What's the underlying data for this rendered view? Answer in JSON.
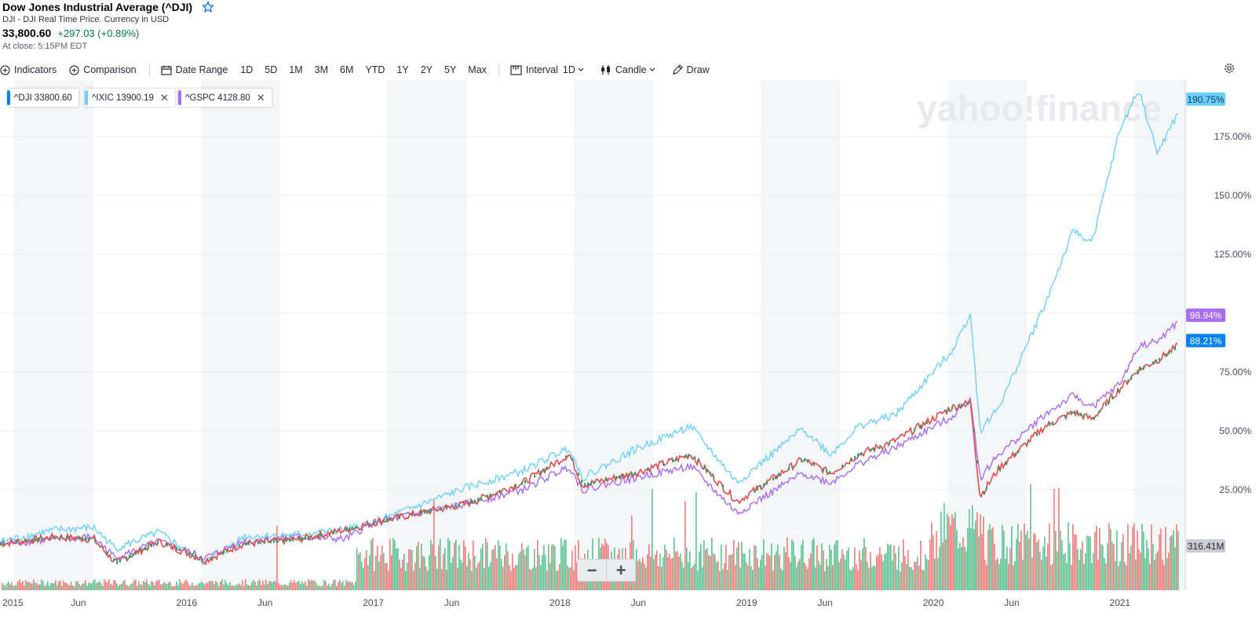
{
  "header": {
    "title": "Dow Jones Industrial Average (^DJI)",
    "subtitle": "DJI - DJI Real Time Price. Currency in USD",
    "price": "33,800.60",
    "change": "+297.03 (+0.89%)",
    "close_note": "At close: 5:15PM EDT",
    "watchlist_icon": "star-icon"
  },
  "toolbar": {
    "indicators": "Indicators",
    "comparison": "Comparison",
    "date_range": "Date Range",
    "ranges": [
      "1D",
      "5D",
      "1M",
      "3M",
      "6M",
      "YTD",
      "1Y",
      "2Y",
      "5Y",
      "Max"
    ],
    "interval_label": "Interval",
    "interval_value": "1D",
    "chart_type": "Candle",
    "draw": "Draw"
  },
  "chips": [
    {
      "label": "^DJI 33800.60",
      "color": "#0081f2",
      "closable": false
    },
    {
      "label": "^IXIC 13900.19",
      "color": "#6cd0ff",
      "closable": true
    },
    {
      "label": "^GSPC 4128.80",
      "color": "#a76bf5",
      "closable": true
    }
  ],
  "zoom": {
    "minus": "−",
    "plus": "+"
  },
  "watermark": "yahoo!finance",
  "colors": {
    "dji": "#0081f2",
    "ixic": "#6cd0ff",
    "gspc": "#a76bf5",
    "up": "#2ea06a",
    "down": "#e34a4a",
    "positive_change": "#067a46",
    "volume_badge": "#c9ccd0"
  },
  "chart_data": {
    "type": "line",
    "ylabel": "",
    "y_unit": "% change",
    "ylim": [
      -10,
      200
    ],
    "yticks": [
      "25.00%",
      "50.00%",
      "75.00%",
      "125.00%",
      "150.00%",
      "175.00%"
    ],
    "xtick_labels": [
      "2015",
      "Jun",
      "2016",
      "Jun",
      "2017",
      "Jun",
      "2018",
      "Jun",
      "2019",
      "Jun",
      "2020",
      "Jun",
      "2021"
    ],
    "x_range": [
      2015.0,
      2021.35
    ],
    "series": [
      {
        "name": "^IXIC",
        "last_label": "190.75%",
        "points": [
          [
            2015.0,
            3
          ],
          [
            2015.3,
            8
          ],
          [
            2015.5,
            9
          ],
          [
            2015.62,
            0
          ],
          [
            2015.85,
            7
          ],
          [
            2016.1,
            -6
          ],
          [
            2016.3,
            5
          ],
          [
            2016.6,
            6
          ],
          [
            2016.85,
            8
          ],
          [
            2017.0,
            11
          ],
          [
            2017.3,
            20
          ],
          [
            2017.5,
            26
          ],
          [
            2017.8,
            33
          ],
          [
            2018.05,
            43
          ],
          [
            2018.12,
            30
          ],
          [
            2018.4,
            42
          ],
          [
            2018.7,
            52
          ],
          [
            2018.95,
            28
          ],
          [
            2019.3,
            51
          ],
          [
            2019.45,
            40
          ],
          [
            2019.6,
            52
          ],
          [
            2019.8,
            57
          ],
          [
            2020.1,
            84
          ],
          [
            2020.2,
            100
          ],
          [
            2020.25,
            50
          ],
          [
            2020.35,
            60
          ],
          [
            2020.6,
            104
          ],
          [
            2020.75,
            135
          ],
          [
            2020.85,
            130
          ],
          [
            2021.0,
            178
          ],
          [
            2021.1,
            195
          ],
          [
            2021.2,
            168
          ],
          [
            2021.35,
            190.75
          ]
        ]
      },
      {
        "name": "^GSPC",
        "last_label": "98.94%",
        "points": [
          [
            2015.0,
            2
          ],
          [
            2015.3,
            4
          ],
          [
            2015.5,
            5
          ],
          [
            2015.62,
            -4
          ],
          [
            2015.85,
            3
          ],
          [
            2016.1,
            -4
          ],
          [
            2016.3,
            3
          ],
          [
            2016.6,
            5
          ],
          [
            2016.85,
            4
          ],
          [
            2017.0,
            11
          ],
          [
            2017.3,
            16
          ],
          [
            2017.5,
            19
          ],
          [
            2017.8,
            25
          ],
          [
            2018.05,
            35
          ],
          [
            2018.12,
            25
          ],
          [
            2018.4,
            30
          ],
          [
            2018.7,
            35
          ],
          [
            2018.95,
            15
          ],
          [
            2019.3,
            32
          ],
          [
            2019.45,
            28
          ],
          [
            2019.6,
            36
          ],
          [
            2019.8,
            43
          ],
          [
            2020.1,
            56
          ],
          [
            2020.2,
            64
          ],
          [
            2020.25,
            30
          ],
          [
            2020.35,
            40
          ],
          [
            2020.6,
            57
          ],
          [
            2020.75,
            65
          ],
          [
            2020.85,
            60
          ],
          [
            2021.0,
            70
          ],
          [
            2021.1,
            86
          ],
          [
            2021.2,
            88
          ],
          [
            2021.35,
            98.94
          ]
        ]
      },
      {
        "name": "^DJI",
        "last_label": "88.21%",
        "style": "candle",
        "points": [
          [
            2015.0,
            2
          ],
          [
            2015.3,
            5
          ],
          [
            2015.5,
            4
          ],
          [
            2015.62,
            -6
          ],
          [
            2015.85,
            3
          ],
          [
            2016.1,
            -5
          ],
          [
            2016.3,
            2
          ],
          [
            2016.6,
            4
          ],
          [
            2016.85,
            8
          ],
          [
            2017.0,
            11
          ],
          [
            2017.3,
            16
          ],
          [
            2017.5,
            19
          ],
          [
            2017.8,
            28
          ],
          [
            2018.05,
            40
          ],
          [
            2018.12,
            27
          ],
          [
            2018.4,
            32
          ],
          [
            2018.7,
            40
          ],
          [
            2018.95,
            20
          ],
          [
            2019.3,
            38
          ],
          [
            2019.45,
            32
          ],
          [
            2019.6,
            40
          ],
          [
            2019.8,
            46
          ],
          [
            2020.1,
            60
          ],
          [
            2020.2,
            62
          ],
          [
            2020.25,
            22
          ],
          [
            2020.35,
            34
          ],
          [
            2020.6,
            52
          ],
          [
            2020.75,
            58
          ],
          [
            2020.85,
            55
          ],
          [
            2021.0,
            68
          ],
          [
            2021.1,
            76
          ],
          [
            2021.2,
            80
          ],
          [
            2021.35,
            88.21
          ]
        ]
      }
    ],
    "volume_label": "316.41M"
  }
}
